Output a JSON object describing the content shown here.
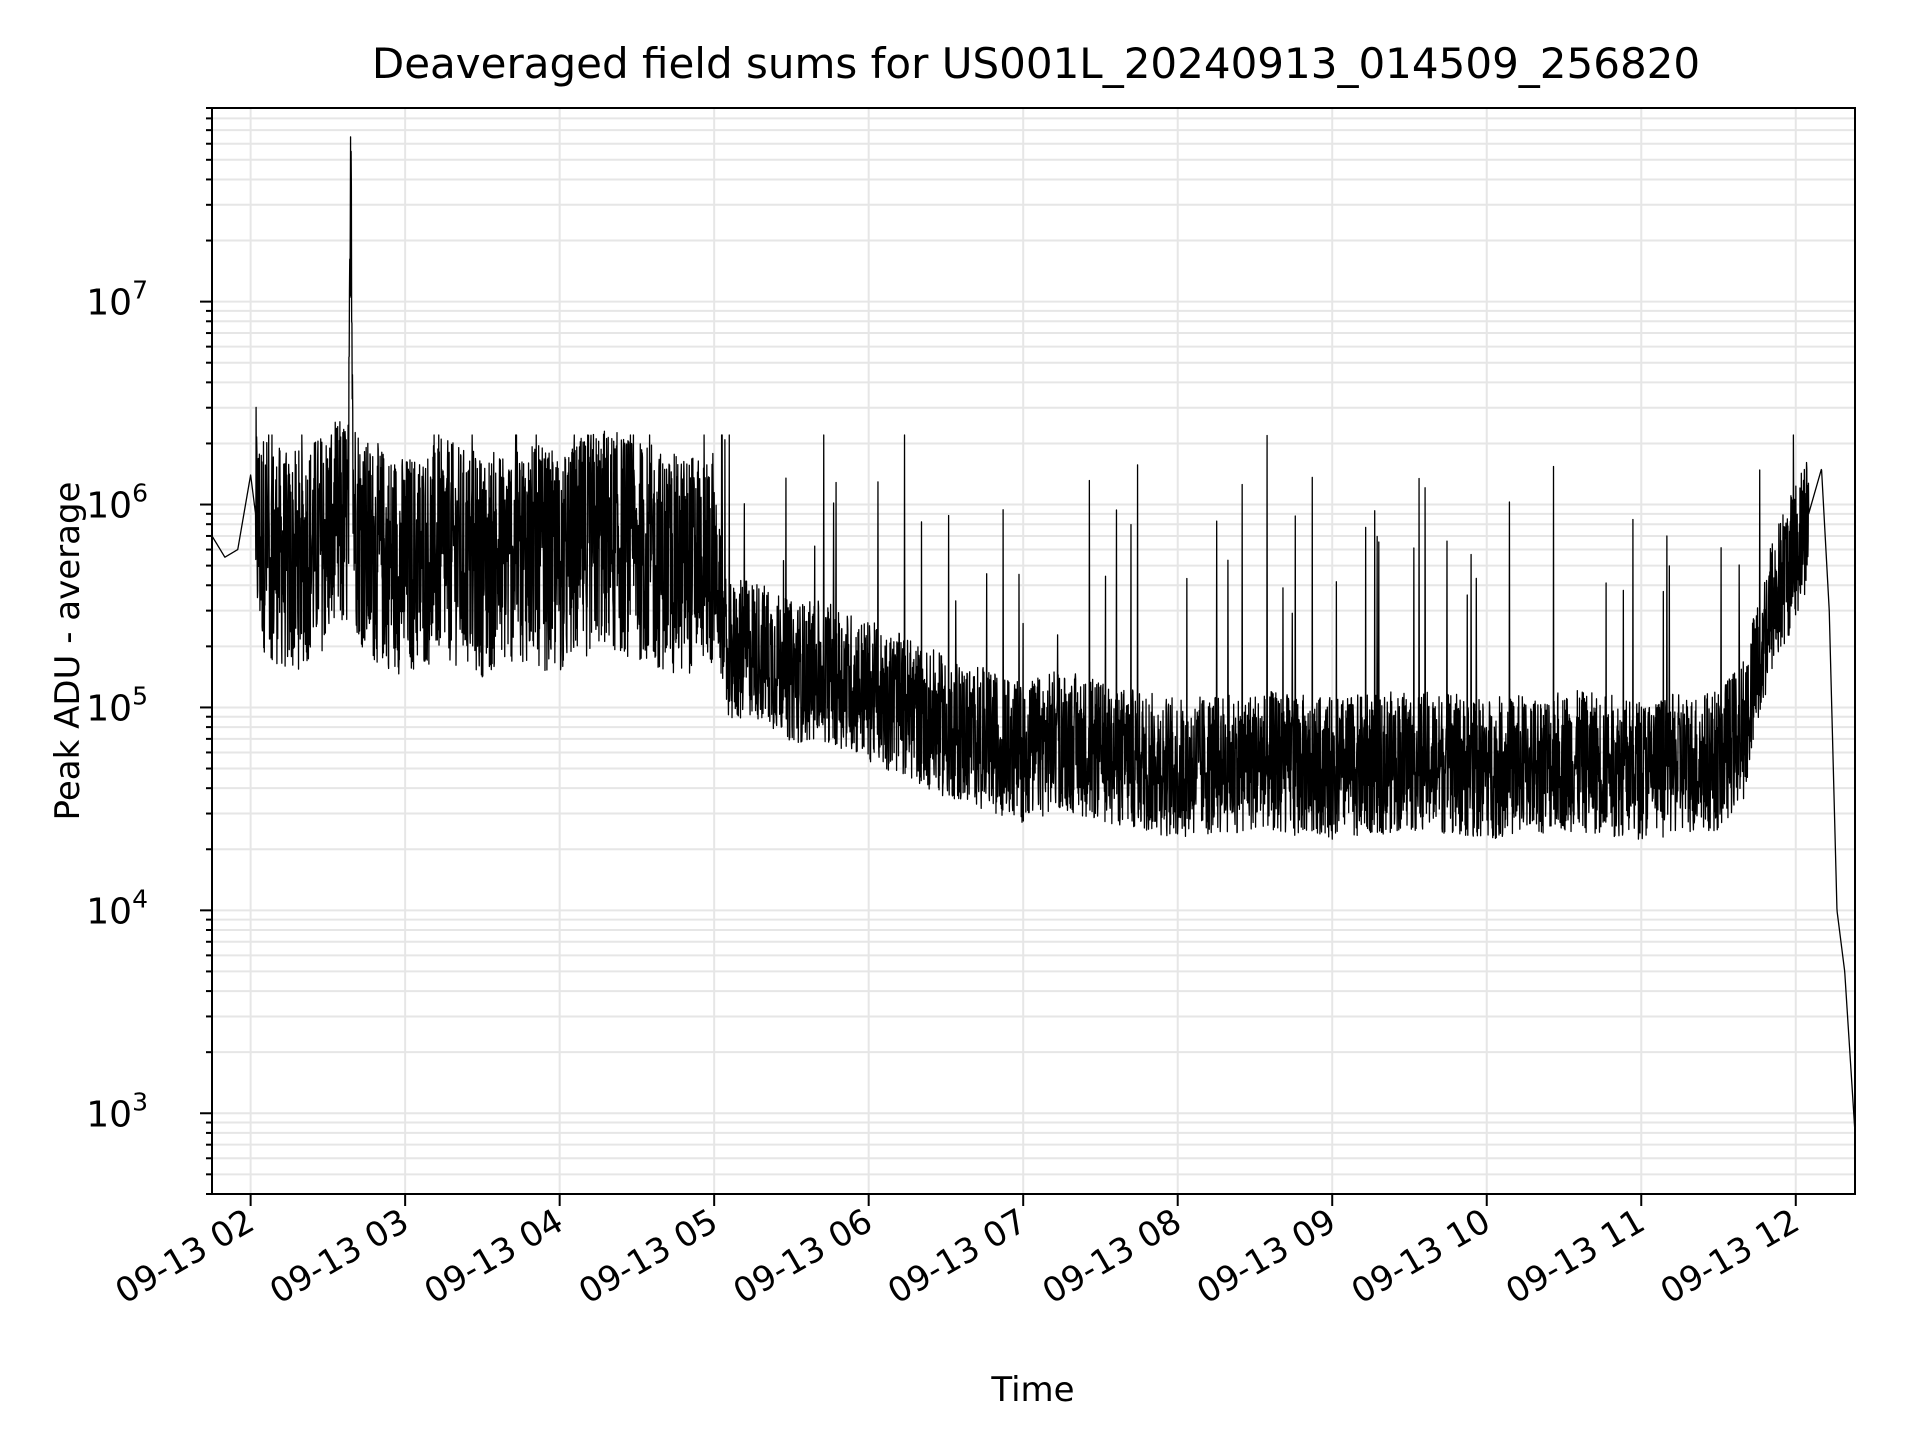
{
  "chart_data": {
    "type": "line",
    "title": "Deaveraged field sums for US001L_20240913_014509_256820",
    "xlabel": "Time",
    "ylabel": "Peak ADU - average",
    "y_scale": "log",
    "ylim": [
      400,
      90000000
    ],
    "xlim": [
      "2024-09-13 01:45",
      "2024-09-13 12:23"
    ],
    "grid": true,
    "line_color": "#000000",
    "grid_color": "#e6e6e6",
    "x_ticks": [
      {
        "label": "09-13 02",
        "value": "2024-09-13 02:00"
      },
      {
        "label": "09-13 03",
        "value": "2024-09-13 03:00"
      },
      {
        "label": "09-13 04",
        "value": "2024-09-13 04:00"
      },
      {
        "label": "09-13 05",
        "value": "2024-09-13 05:00"
      },
      {
        "label": "09-13 06",
        "value": "2024-09-13 06:00"
      },
      {
        "label": "09-13 07",
        "value": "2024-09-13 07:00"
      },
      {
        "label": "09-13 08",
        "value": "2024-09-13 08:00"
      },
      {
        "label": "09-13 09",
        "value": "2024-09-13 09:00"
      },
      {
        "label": "09-13 10",
        "value": "2024-09-13 10:00"
      },
      {
        "label": "09-13 11",
        "value": "2024-09-13 11:00"
      },
      {
        "label": "09-13 12",
        "value": "2024-09-13 12:00"
      }
    ],
    "y_ticks": [
      {
        "base": "10",
        "exp": "3",
        "value": 1000
      },
      {
        "base": "10",
        "exp": "4",
        "value": 10000
      },
      {
        "base": "10",
        "exp": "5",
        "value": 100000
      },
      {
        "base": "10",
        "exp": "6",
        "value": 1000000
      },
      {
        "base": "10",
        "exp": "7",
        "value": 10000000
      }
    ],
    "series": [
      {
        "x": [
          "2024-09-13 01:45",
          "2024-09-13 01:50",
          "2024-09-13 01:55",
          "2024-09-13 02:00",
          "2024-09-13 02:03",
          "2024-09-13 02:15",
          "2024-09-13 02:30",
          "2024-09-13 02:38",
          "2024-09-13 02:39",
          "2024-09-13 02:40",
          "2024-09-13 02:45",
          "2024-09-13 03:00",
          "2024-09-13 03:15",
          "2024-09-13 03:30",
          "2024-09-13 03:45",
          "2024-09-13 04:00",
          "2024-09-13 04:15",
          "2024-09-13 04:30",
          "2024-09-13 04:45",
          "2024-09-13 05:00",
          "2024-09-13 05:05",
          "2024-09-13 05:15",
          "2024-09-13 05:30",
          "2024-09-13 05:45",
          "2024-09-13 06:00",
          "2024-09-13 06:15",
          "2024-09-13 06:30",
          "2024-09-13 06:45",
          "2024-09-13 07:00",
          "2024-09-13 07:15",
          "2024-09-13 07:30",
          "2024-09-13 07:45",
          "2024-09-13 08:00",
          "2024-09-13 08:30",
          "2024-09-13 09:00",
          "2024-09-13 09:30",
          "2024-09-13 10:00",
          "2024-09-13 10:30",
          "2024-09-13 11:00",
          "2024-09-13 11:30",
          "2024-09-13 11:40",
          "2024-09-13 11:50",
          "2024-09-13 12:00",
          "2024-09-13 12:05",
          "2024-09-13 12:10",
          "2024-09-13 12:13",
          "2024-09-13 12:16",
          "2024-09-13 12:19",
          "2024-09-13 12:21",
          "2024-09-13 12:23"
        ],
        "y": [
          700000,
          550000,
          600000,
          1400000,
          700000,
          500000,
          700000,
          800000,
          55000000,
          900000,
          600000,
          500000,
          600000,
          500000,
          600000,
          500000,
          700000,
          600000,
          500000,
          550000,
          180000,
          200000,
          150000,
          150000,
          120000,
          100000,
          80000,
          70000,
          60000,
          70000,
          60000,
          55000,
          50000,
          55000,
          50000,
          55000,
          50000,
          55000,
          50000,
          55000,
          80000,
          300000,
          600000,
          900000,
          1500000,
          300000,
          10000,
          5000,
          2000,
          800
        ]
      }
    ]
  }
}
